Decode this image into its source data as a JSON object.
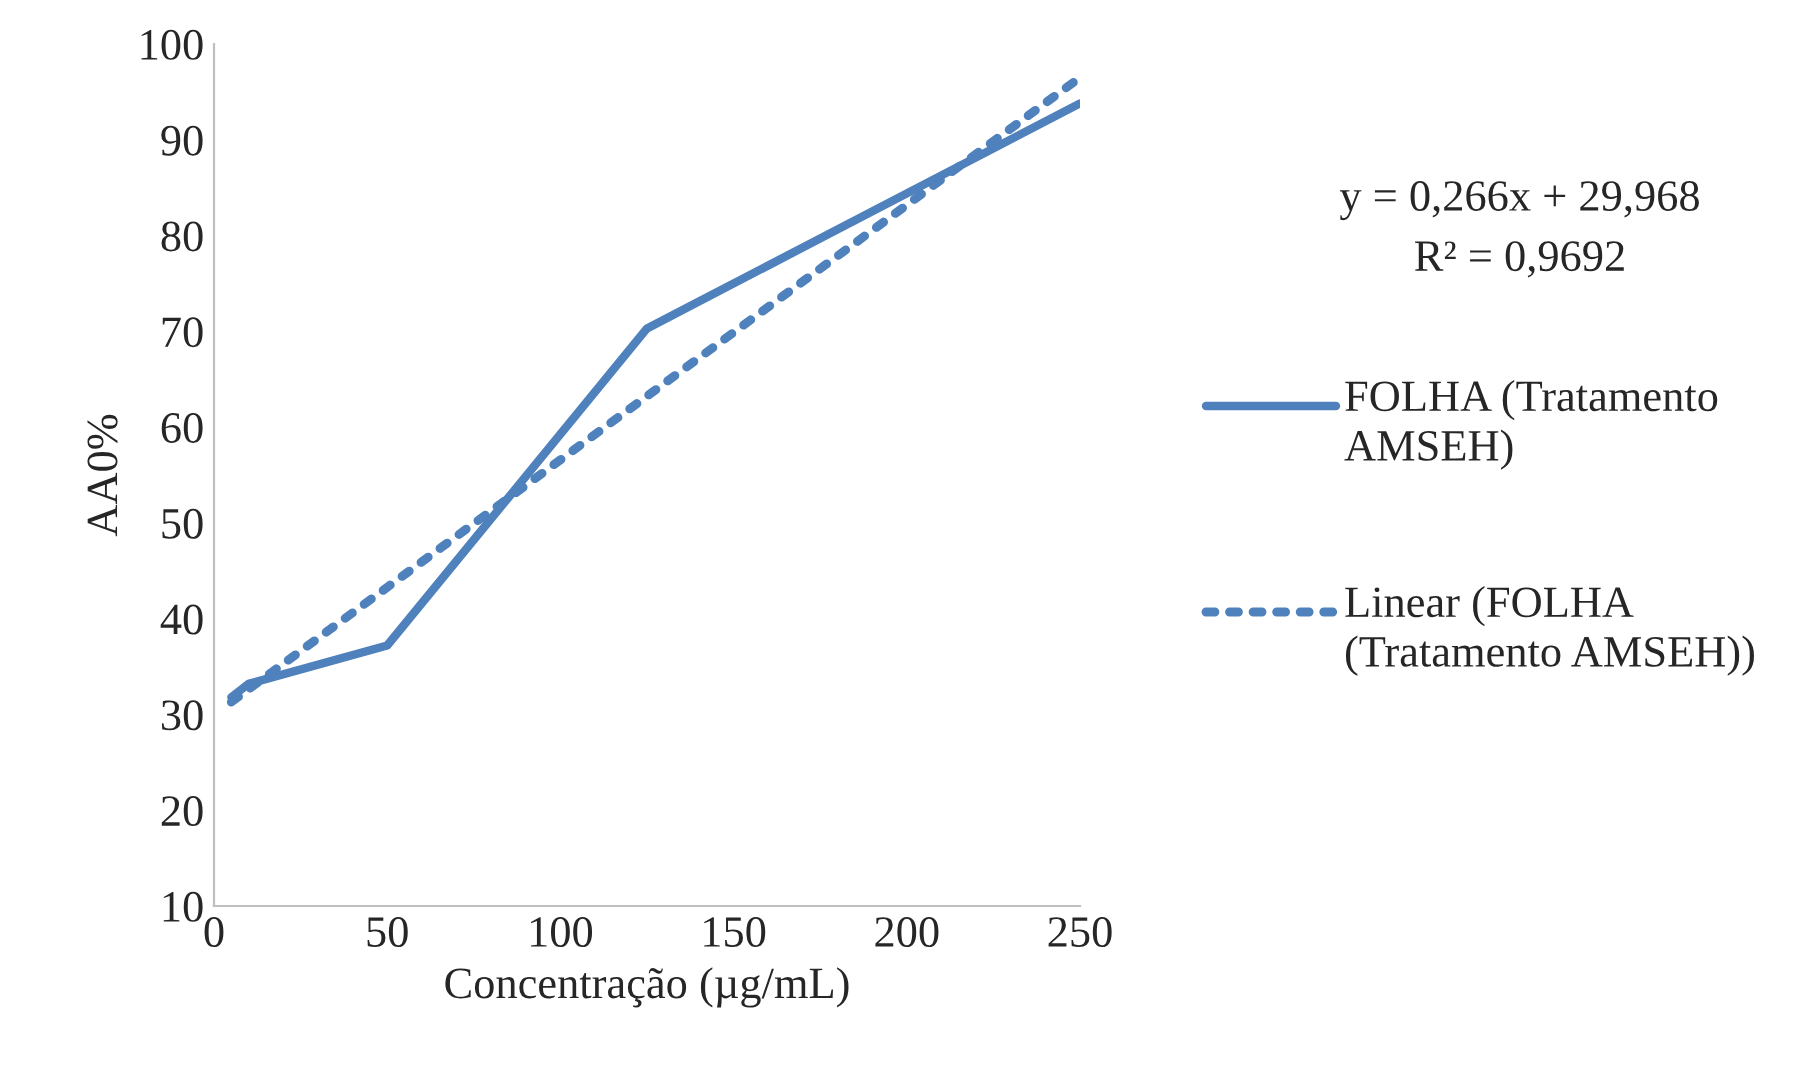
{
  "chart_data": {
    "type": "line",
    "xlabel": "Concentração (µg/mL)",
    "ylabel": "AA0%",
    "xlim": [
      0,
      250
    ],
    "xticks": [
      0,
      50,
      100,
      150,
      200,
      250
    ],
    "ylim": [
      10,
      100
    ],
    "yticks": [
      10,
      20,
      30,
      40,
      50,
      60,
      70,
      80,
      90,
      100
    ],
    "grid": false,
    "legend": "right",
    "marker": "none",
    "series": [
      {
        "name": "FOLHA (Tratamento AMSEH)",
        "color": "#4f81bd",
        "line_style": "solid",
        "x": [
          5,
          10,
          50,
          125,
          250
        ],
        "values": [
          31.8,
          33.2,
          37.2,
          70.3,
          93.8
        ]
      },
      {
        "name": "Linear (FOLHA (Tratamento AMSEH))",
        "color": "#4f81bd",
        "line_style": "dotted",
        "x": [
          5,
          250
        ],
        "values": [
          31.3,
          96.5
        ]
      }
    ],
    "annotations": [
      "y = 0,266x + 29,968",
      "R² = 0,9692"
    ]
  }
}
